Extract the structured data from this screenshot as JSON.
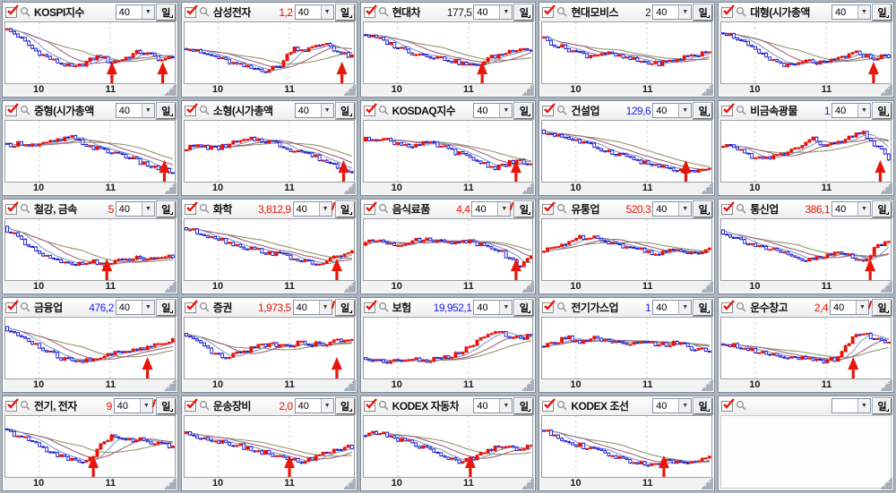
{
  "app": {
    "period_value": "40",
    "day_button_label": "일",
    "axis_labels": [
      "10",
      "11"
    ],
    "axis_positions": [
      0.2,
      0.62
    ],
    "colors": {
      "up_candle": "#e8150a",
      "down_candle": "#1717cf",
      "ma_short": "#7f9cc0",
      "ma_mid": "#a2607e",
      "ma_long": "#8e9668",
      "arrow": "#e8150a",
      "value_up": "#e8150a",
      "value_down": "#1d1df0",
      "value_flat": "#1a1a1a",
      "grid_line": "#c9c9c9"
    }
  },
  "panels": [
    {
      "title": "KOSPI지수",
      "value": "",
      "value_color": "",
      "clip": false,
      "empty": false,
      "arrows": [
        0.63,
        0.93
      ],
      "shape": [
        [
          0,
          0.95
        ],
        [
          0.08,
          0.82
        ],
        [
          0.18,
          0.55
        ],
        [
          0.3,
          0.35
        ],
        [
          0.42,
          0.22
        ],
        [
          0.5,
          0.35
        ],
        [
          0.57,
          0.45
        ],
        [
          0.63,
          0.32
        ],
        [
          0.7,
          0.38
        ],
        [
          0.8,
          0.52
        ],
        [
          0.88,
          0.45
        ],
        [
          0.95,
          0.35
        ],
        [
          1,
          0.45
        ]
      ]
    },
    {
      "title": "삼성전자",
      "value": "1,2",
      "value_color": "#e8150a",
      "clip": false,
      "empty": false,
      "arrows": [
        0.93
      ],
      "shape": [
        [
          0,
          0.62
        ],
        [
          0.1,
          0.5
        ],
        [
          0.2,
          0.42
        ],
        [
          0.3,
          0.3
        ],
        [
          0.4,
          0.22
        ],
        [
          0.5,
          0.18
        ],
        [
          0.58,
          0.28
        ],
        [
          0.65,
          0.6
        ],
        [
          0.72,
          0.55
        ],
        [
          0.78,
          0.6
        ],
        [
          0.85,
          0.68
        ],
        [
          0.92,
          0.5
        ],
        [
          1,
          0.42
        ]
      ]
    },
    {
      "title": "현대차",
      "value": "177,5",
      "value_color": "#1a1a1a",
      "clip": false,
      "empty": false,
      "arrows": [
        0.7
      ],
      "shape": [
        [
          0,
          0.85
        ],
        [
          0.1,
          0.75
        ],
        [
          0.2,
          0.62
        ],
        [
          0.3,
          0.5
        ],
        [
          0.4,
          0.45
        ],
        [
          0.5,
          0.38
        ],
        [
          0.6,
          0.3
        ],
        [
          0.67,
          0.25
        ],
        [
          0.75,
          0.4
        ],
        [
          0.85,
          0.5
        ],
        [
          0.93,
          0.6
        ],
        [
          1,
          0.55
        ]
      ]
    },
    {
      "title": "현대모비스",
      "value": "2",
      "value_color": "#1a1a1a",
      "clip": false,
      "empty": false,
      "arrows": [],
      "shape": [
        [
          0,
          0.8
        ],
        [
          0.08,
          0.65
        ],
        [
          0.18,
          0.55
        ],
        [
          0.28,
          0.45
        ],
        [
          0.38,
          0.5
        ],
        [
          0.48,
          0.42
        ],
        [
          0.58,
          0.35
        ],
        [
          0.68,
          0.3
        ],
        [
          0.78,
          0.35
        ],
        [
          0.88,
          0.45
        ],
        [
          1,
          0.5
        ]
      ]
    },
    {
      "title": "대형(시가총액",
      "value": "",
      "value_color": "",
      "clip": false,
      "empty": false,
      "arrows": [
        0.9
      ],
      "shape": [
        [
          0,
          0.9
        ],
        [
          0.1,
          0.78
        ],
        [
          0.2,
          0.55
        ],
        [
          0.3,
          0.38
        ],
        [
          0.42,
          0.25
        ],
        [
          0.52,
          0.35
        ],
        [
          0.62,
          0.3
        ],
        [
          0.72,
          0.42
        ],
        [
          0.82,
          0.5
        ],
        [
          0.9,
          0.4
        ],
        [
          1,
          0.45
        ]
      ]
    },
    {
      "title": "중형(시가총액",
      "value": "",
      "value_color": "",
      "clip": false,
      "empty": false,
      "arrows": [
        0.94
      ],
      "shape": [
        [
          0,
          0.6
        ],
        [
          0.1,
          0.65
        ],
        [
          0.2,
          0.6
        ],
        [
          0.3,
          0.68
        ],
        [
          0.4,
          0.75
        ],
        [
          0.5,
          0.6
        ],
        [
          0.6,
          0.5
        ],
        [
          0.7,
          0.45
        ],
        [
          0.8,
          0.3
        ],
        [
          0.9,
          0.2
        ],
        [
          1,
          0.12
        ]
      ]
    },
    {
      "title": "소형(시가총액",
      "value": "",
      "value_color": "",
      "clip": false,
      "empty": false,
      "arrows": [
        0.94
      ],
      "shape": [
        [
          0,
          0.55
        ],
        [
          0.1,
          0.6
        ],
        [
          0.2,
          0.55
        ],
        [
          0.3,
          0.65
        ],
        [
          0.42,
          0.72
        ],
        [
          0.52,
          0.68
        ],
        [
          0.62,
          0.55
        ],
        [
          0.72,
          0.48
        ],
        [
          0.82,
          0.35
        ],
        [
          0.92,
          0.22
        ],
        [
          1,
          0.15
        ]
      ]
    },
    {
      "title": "KOSDAQ지수",
      "value": "",
      "value_color": "",
      "clip": false,
      "empty": false,
      "arrows": [
        0.9
      ],
      "shape": [
        [
          0,
          0.7
        ],
        [
          0.1,
          0.75
        ],
        [
          0.2,
          0.65
        ],
        [
          0.3,
          0.6
        ],
        [
          0.4,
          0.65
        ],
        [
          0.5,
          0.55
        ],
        [
          0.6,
          0.42
        ],
        [
          0.7,
          0.3
        ],
        [
          0.78,
          0.2
        ],
        [
          0.86,
          0.28
        ],
        [
          0.94,
          0.32
        ],
        [
          1,
          0.25
        ]
      ]
    },
    {
      "title": "건설업",
      "value": "129,6",
      "value_color": "#1d1df0",
      "clip": false,
      "empty": false,
      "arrows": [
        0.85
      ],
      "shape": [
        [
          0,
          0.85
        ],
        [
          0.1,
          0.8
        ],
        [
          0.2,
          0.7
        ],
        [
          0.3,
          0.6
        ],
        [
          0.4,
          0.5
        ],
        [
          0.5,
          0.42
        ],
        [
          0.6,
          0.3
        ],
        [
          0.7,
          0.22
        ],
        [
          0.8,
          0.15
        ],
        [
          0.9,
          0.12
        ],
        [
          1,
          0.15
        ]
      ]
    },
    {
      "title": "비금속광물",
      "value": "1",
      "value_color": "#1d1df0",
      "clip": false,
      "empty": false,
      "arrows": [
        0.94
      ],
      "shape": [
        [
          0,
          0.55
        ],
        [
          0.08,
          0.6
        ],
        [
          0.16,
          0.45
        ],
        [
          0.25,
          0.35
        ],
        [
          0.35,
          0.42
        ],
        [
          0.45,
          0.55
        ],
        [
          0.55,
          0.72
        ],
        [
          0.63,
          0.6
        ],
        [
          0.7,
          0.65
        ],
        [
          0.78,
          0.75
        ],
        [
          0.85,
          0.85
        ],
        [
          0.92,
          0.6
        ],
        [
          1,
          0.38
        ]
      ]
    },
    {
      "title": "철강, 금속",
      "value": "5",
      "value_color": "#e8150a",
      "clip": false,
      "empty": false,
      "arrows": [
        0.6
      ],
      "shape": [
        [
          0,
          0.9
        ],
        [
          0.06,
          0.8
        ],
        [
          0.12,
          0.6
        ],
        [
          0.2,
          0.45
        ],
        [
          0.3,
          0.3
        ],
        [
          0.4,
          0.22
        ],
        [
          0.5,
          0.3
        ],
        [
          0.6,
          0.22
        ],
        [
          0.7,
          0.3
        ],
        [
          0.8,
          0.35
        ],
        [
          0.9,
          0.3
        ],
        [
          1,
          0.38
        ]
      ]
    },
    {
      "title": "화학",
      "value": "3,812,9",
      "value_color": "#e8150a",
      "clip": true,
      "empty": false,
      "arrows": [
        0.9
      ],
      "shape": [
        [
          0,
          0.9
        ],
        [
          0.1,
          0.8
        ],
        [
          0.2,
          0.72
        ],
        [
          0.3,
          0.6
        ],
        [
          0.4,
          0.52
        ],
        [
          0.5,
          0.45
        ],
        [
          0.6,
          0.4
        ],
        [
          0.7,
          0.3
        ],
        [
          0.78,
          0.22
        ],
        [
          0.86,
          0.3
        ],
        [
          0.93,
          0.4
        ],
        [
          1,
          0.45
        ]
      ]
    },
    {
      "title": "음식료품",
      "value": "4,4",
      "value_color": "#e8150a",
      "clip": true,
      "empty": false,
      "arrows": [
        0.9
      ],
      "shape": [
        [
          0,
          0.6
        ],
        [
          0.1,
          0.68
        ],
        [
          0.2,
          0.6
        ],
        [
          0.3,
          0.65
        ],
        [
          0.4,
          0.7
        ],
        [
          0.5,
          0.62
        ],
        [
          0.6,
          0.68
        ],
        [
          0.7,
          0.6
        ],
        [
          0.78,
          0.55
        ],
        [
          0.85,
          0.4
        ],
        [
          0.92,
          0.2
        ],
        [
          1,
          0.35
        ]
      ]
    },
    {
      "title": "유통업",
      "value": "520,3",
      "value_color": "#e8150a",
      "clip": false,
      "empty": false,
      "arrows": [],
      "shape": [
        [
          0,
          0.45
        ],
        [
          0.1,
          0.55
        ],
        [
          0.2,
          0.7
        ],
        [
          0.3,
          0.75
        ],
        [
          0.4,
          0.65
        ],
        [
          0.5,
          0.55
        ],
        [
          0.6,
          0.5
        ],
        [
          0.7,
          0.42
        ],
        [
          0.8,
          0.5
        ],
        [
          0.9,
          0.45
        ],
        [
          1,
          0.5
        ]
      ]
    },
    {
      "title": "통신업",
      "value": "386,1",
      "value_color": "#e8150a",
      "clip": false,
      "empty": false,
      "arrows": [
        0.88
      ],
      "shape": [
        [
          0,
          0.85
        ],
        [
          0.1,
          0.7
        ],
        [
          0.2,
          0.6
        ],
        [
          0.3,
          0.5
        ],
        [
          0.4,
          0.4
        ],
        [
          0.5,
          0.3
        ],
        [
          0.6,
          0.35
        ],
        [
          0.7,
          0.45
        ],
        [
          0.78,
          0.38
        ],
        [
          0.86,
          0.3
        ],
        [
          0.93,
          0.55
        ],
        [
          1,
          0.65
        ]
      ]
    },
    {
      "title": "금융업",
      "value": "476,2",
      "value_color": "#1d1df0",
      "clip": false,
      "empty": false,
      "arrows": [
        0.84
      ],
      "shape": [
        [
          0,
          0.85
        ],
        [
          0.08,
          0.75
        ],
        [
          0.16,
          0.6
        ],
        [
          0.25,
          0.45
        ],
        [
          0.35,
          0.3
        ],
        [
          0.45,
          0.25
        ],
        [
          0.55,
          0.32
        ],
        [
          0.65,
          0.4
        ],
        [
          0.75,
          0.45
        ],
        [
          0.85,
          0.52
        ],
        [
          0.93,
          0.6
        ],
        [
          1,
          0.65
        ]
      ]
    },
    {
      "title": "증권",
      "value": "1,973,5",
      "value_color": "#e8150a",
      "clip": true,
      "empty": false,
      "arrows": [
        0.9
      ],
      "shape": [
        [
          0,
          0.75
        ],
        [
          0.08,
          0.6
        ],
        [
          0.16,
          0.45
        ],
        [
          0.25,
          0.3
        ],
        [
          0.33,
          0.4
        ],
        [
          0.42,
          0.52
        ],
        [
          0.52,
          0.58
        ],
        [
          0.62,
          0.55
        ],
        [
          0.72,
          0.6
        ],
        [
          0.82,
          0.55
        ],
        [
          0.9,
          0.62
        ],
        [
          1,
          0.68
        ]
      ]
    },
    {
      "title": "보험",
      "value": "19,952,1",
      "value_color": "#1d1df0",
      "clip": false,
      "empty": false,
      "arrows": [],
      "shape": [
        [
          0,
          0.3
        ],
        [
          0.1,
          0.28
        ],
        [
          0.2,
          0.25
        ],
        [
          0.3,
          0.3
        ],
        [
          0.4,
          0.28
        ],
        [
          0.5,
          0.32
        ],
        [
          0.6,
          0.45
        ],
        [
          0.7,
          0.65
        ],
        [
          0.78,
          0.8
        ],
        [
          0.85,
          0.75
        ],
        [
          0.92,
          0.68
        ],
        [
          1,
          0.72
        ]
      ]
    },
    {
      "title": "전기가스업",
      "value": "1",
      "value_color": "#1d1df0",
      "clip": false,
      "empty": false,
      "arrows": [],
      "shape": [
        [
          0,
          0.5
        ],
        [
          0.08,
          0.6
        ],
        [
          0.16,
          0.7
        ],
        [
          0.25,
          0.6
        ],
        [
          0.33,
          0.68
        ],
        [
          0.42,
          0.6
        ],
        [
          0.5,
          0.55
        ],
        [
          0.6,
          0.6
        ],
        [
          0.7,
          0.55
        ],
        [
          0.8,
          0.6
        ],
        [
          0.9,
          0.5
        ],
        [
          1,
          0.45
        ]
      ]
    },
    {
      "title": "운수창고",
      "value": "2,4",
      "value_color": "#e8150a",
      "clip": true,
      "empty": false,
      "arrows": [
        0.78
      ],
      "shape": [
        [
          0,
          0.6
        ],
        [
          0.1,
          0.55
        ],
        [
          0.2,
          0.45
        ],
        [
          0.3,
          0.4
        ],
        [
          0.4,
          0.35
        ],
        [
          0.5,
          0.3
        ],
        [
          0.6,
          0.25
        ],
        [
          0.68,
          0.3
        ],
        [
          0.75,
          0.55
        ],
        [
          0.82,
          0.8
        ],
        [
          0.9,
          0.7
        ],
        [
          1,
          0.6
        ]
      ]
    },
    {
      "title": "전기, 전자",
      "value": "9",
      "value_color": "#e8150a",
      "clip": true,
      "empty": false,
      "arrows": [
        0.52
      ],
      "shape": [
        [
          0,
          0.8
        ],
        [
          0.08,
          0.7
        ],
        [
          0.16,
          0.6
        ],
        [
          0.25,
          0.45
        ],
        [
          0.35,
          0.3
        ],
        [
          0.45,
          0.22
        ],
        [
          0.52,
          0.3
        ],
        [
          0.58,
          0.55
        ],
        [
          0.65,
          0.7
        ],
        [
          0.72,
          0.6
        ],
        [
          0.8,
          0.65
        ],
        [
          0.9,
          0.55
        ],
        [
          1,
          0.5
        ]
      ]
    },
    {
      "title": "운송장비",
      "value": "2,0",
      "value_color": "#e8150a",
      "clip": false,
      "empty": false,
      "arrows": [
        0.62
      ],
      "shape": [
        [
          0,
          0.75
        ],
        [
          0.1,
          0.68
        ],
        [
          0.2,
          0.6
        ],
        [
          0.3,
          0.55
        ],
        [
          0.4,
          0.45
        ],
        [
          0.5,
          0.38
        ],
        [
          0.6,
          0.28
        ],
        [
          0.7,
          0.22
        ],
        [
          0.78,
          0.3
        ],
        [
          0.86,
          0.38
        ],
        [
          0.93,
          0.45
        ],
        [
          1,
          0.5
        ]
      ]
    },
    {
      "title": "KODEX 자동차",
      "value": "",
      "value_color": "",
      "clip": false,
      "empty": false,
      "arrows": [
        0.63
      ],
      "shape": [
        [
          0,
          0.7
        ],
        [
          0.1,
          0.75
        ],
        [
          0.2,
          0.65
        ],
        [
          0.3,
          0.55
        ],
        [
          0.4,
          0.45
        ],
        [
          0.5,
          0.3
        ],
        [
          0.58,
          0.2
        ],
        [
          0.66,
          0.3
        ],
        [
          0.74,
          0.45
        ],
        [
          0.82,
          0.5
        ],
        [
          0.9,
          0.45
        ],
        [
          1,
          0.5
        ]
      ]
    },
    {
      "title": "KODEX 조선",
      "value": "",
      "value_color": "",
      "clip": false,
      "empty": false,
      "arrows": [
        0.72
      ],
      "shape": [
        [
          0,
          0.8
        ],
        [
          0.08,
          0.72
        ],
        [
          0.16,
          0.6
        ],
        [
          0.25,
          0.5
        ],
        [
          0.35,
          0.4
        ],
        [
          0.45,
          0.3
        ],
        [
          0.55,
          0.22
        ],
        [
          0.65,
          0.18
        ],
        [
          0.75,
          0.22
        ],
        [
          0.85,
          0.2
        ],
        [
          0.93,
          0.28
        ],
        [
          1,
          0.3
        ]
      ]
    },
    {
      "title": "",
      "value": "",
      "value_color": "",
      "clip": false,
      "empty": true,
      "arrows": [],
      "shape": []
    }
  ]
}
